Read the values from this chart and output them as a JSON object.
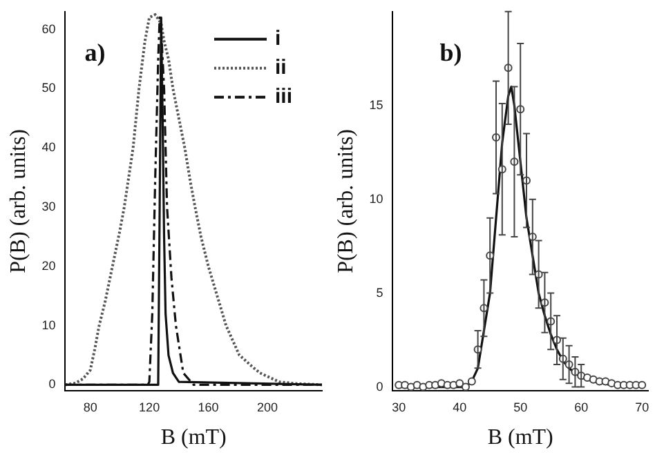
{
  "chart_data": [
    {
      "type": "line",
      "xlabel": "B (mT)",
      "ylabel": "P(B) (arb. units)",
      "annotations": [
        "a)"
      ],
      "xlim": [
        63,
        237
      ],
      "ylim": [
        -1,
        63
      ],
      "xticks": [
        80,
        120,
        160,
        200
      ],
      "yticks": [
        0,
        10,
        20,
        30,
        40,
        50,
        60
      ],
      "grid": false,
      "legend": "top right",
      "marker": "none",
      "series": [
        {
          "name": "i",
          "color": "#111111",
          "line_style": "solid",
          "x": [
            63,
            126,
            127,
            128,
            129,
            130,
            131,
            133,
            136,
            140,
            237
          ],
          "values": [
            0,
            0,
            30,
            62,
            45,
            25,
            12,
            5,
            2,
            0.5,
            0
          ]
        },
        {
          "name": "ii",
          "color": "#555555",
          "line_style": "dotted",
          "x": [
            63,
            70,
            75,
            80,
            83,
            86,
            90,
            95,
            100,
            103,
            106,
            109,
            113,
            117,
            120,
            124,
            128,
            130,
            133,
            136,
            140,
            144,
            148,
            151,
            155,
            160,
            166,
            172,
            181,
            190,
            195,
            208,
            220,
            237
          ],
          "values": [
            0,
            0.3,
            1,
            2.5,
            6,
            10,
            14,
            20,
            26,
            30,
            35,
            40,
            50,
            58,
            62,
            62.5,
            61,
            58,
            55,
            50,
            45,
            40,
            34,
            30,
            25,
            20,
            15,
            10,
            5,
            3,
            2,
            0.5,
            0.2,
            0
          ]
        },
        {
          "name": "iii",
          "color": "#111111",
          "line_style": "dashed",
          "x": [
            63,
            119,
            120,
            122,
            124,
            126,
            127,
            128,
            130,
            132,
            135,
            138,
            143,
            150,
            237
          ],
          "values": [
            0,
            0,
            0.5,
            12,
            35,
            55,
            62,
            60,
            50,
            30,
            18,
            10,
            2,
            0,
            0
          ]
        }
      ]
    },
    {
      "type": "scatter",
      "xlabel": "B (mT)",
      "ylabel": "P(B) (arb. units)",
      "annotations": [
        "b)"
      ],
      "xlim": [
        29,
        71
      ],
      "ylim": [
        -0.2,
        20
      ],
      "xticks": [
        30,
        40,
        50,
        60,
        70
      ],
      "yticks": [
        0,
        5,
        10,
        15
      ],
      "grid": false,
      "legend": false,
      "series": [
        {
          "type": "scatter",
          "color": "#444444",
          "marker": "circle",
          "x": [
            30,
            31,
            32,
            33,
            34,
            35,
            36,
            37,
            38,
            39,
            40,
            41,
            42,
            43,
            44,
            45,
            46,
            47,
            48,
            49,
            50,
            51,
            52,
            53,
            54,
            55,
            56,
            57,
            58,
            59,
            60,
            61,
            62,
            63,
            64,
            65,
            66,
            67,
            68,
            69,
            70
          ],
          "values": [
            0.1,
            0.1,
            0,
            0.1,
            0,
            0.1,
            0.1,
            0.2,
            0.1,
            0.1,
            0.2,
            0,
            0.3,
            2,
            4.2,
            7,
            13.3,
            11.6,
            17,
            12,
            14.8,
            11,
            8,
            6,
            4.5,
            3.5,
            2.5,
            1.5,
            1.2,
            0.8,
            0.6,
            0.5,
            0.4,
            0.3,
            0.3,
            0.2,
            0.1,
            0.1,
            0.1,
            0.1,
            0.1
          ],
          "errors": [
            null,
            null,
            null,
            null,
            null,
            null,
            null,
            null,
            null,
            null,
            null,
            null,
            null,
            1,
            1.5,
            2,
            3,
            3.5,
            3,
            4,
            3.5,
            2.5,
            2,
            1.8,
            1.6,
            1.5,
            1.3,
            1.1,
            1,
            0.8,
            0.6,
            null,
            null,
            null,
            null,
            null,
            null,
            null,
            null,
            null,
            null
          ]
        },
        {
          "type": "line",
          "color": "#111111",
          "marker": "none",
          "line_style": "solid",
          "x": [
            30,
            41,
            42,
            43,
            44,
            45,
            46,
            47,
            48,
            48.5,
            49,
            50,
            51,
            52,
            53,
            54,
            55,
            56,
            57,
            58,
            60,
            62,
            65,
            70
          ],
          "values": [
            0,
            0,
            0.3,
            1,
            3,
            5,
            9,
            13,
            15.5,
            16,
            15,
            12,
            9,
            7,
            5,
            3.8,
            2.8,
            2,
            1.4,
            1,
            0.5,
            0.3,
            0.1,
            0
          ]
        }
      ]
    }
  ]
}
